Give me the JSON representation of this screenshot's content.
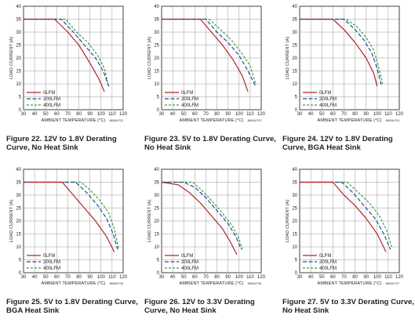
{
  "legend_labels": [
    "0LFM",
    "200LFM",
    "400LFM"
  ],
  "series_colors": {
    "0LFM": "#b2242b",
    "200LFM": "#1f4e96",
    "400LFM": "#3f9c44"
  },
  "chart_data": [
    {
      "type": "line",
      "caption": "Figure 22. 12V to 1.8V Derating Curve, No Heat Sink",
      "xlabel": "AMBIENT TEMPERATURE (°C)",
      "ylabel": "LOAD CURRENT (A)",
      "code": "8600A F22",
      "xlim": [
        30,
        120
      ],
      "ylim": [
        0,
        40
      ],
      "xticks": [
        30,
        40,
        50,
        60,
        70,
        80,
        90,
        100,
        110,
        120
      ],
      "yticks": [
        0,
        5,
        10,
        15,
        20,
        25,
        30,
        35,
        40
      ],
      "grid": true,
      "legend_position": "bottom-left",
      "series": [
        {
          "name": "0LFM",
          "x": [
            30,
            58,
            70,
            80,
            90,
            98,
            103
          ],
          "y": [
            35,
            35,
            30,
            25,
            18,
            12,
            7
          ]
        },
        {
          "name": "200LFM",
          "x": [
            30,
            64,
            75,
            85,
            95,
            102,
            107
          ],
          "y": [
            35,
            35,
            30,
            25,
            20,
            15,
            9
          ]
        },
        {
          "name": "400LFM",
          "x": [
            30,
            68,
            78,
            88,
            97,
            103,
            107
          ],
          "y": [
            35,
            35,
            30,
            26,
            21,
            16,
            9
          ]
        }
      ]
    },
    {
      "type": "line",
      "caption": "Figure 23. 5V to 1.8V Derating Curve, No Heat Sink",
      "xlabel": "AMBIENT TEMPERATURE (°C)",
      "ylabel": "LOAD CURRENT (A)",
      "code": "8600A F23",
      "xlim": [
        30,
        120
      ],
      "ylim": [
        0,
        40
      ],
      "xticks": [
        30,
        40,
        50,
        60,
        70,
        80,
        90,
        100,
        110,
        120
      ],
      "yticks": [
        0,
        5,
        10,
        15,
        20,
        25,
        30,
        35,
        40
      ],
      "grid": true,
      "legend_position": "bottom-left",
      "series": [
        {
          "name": "0LFM",
          "x": [
            30,
            65,
            75,
            85,
            95,
            103,
            108
          ],
          "y": [
            35,
            35,
            30,
            25,
            19,
            13,
            7
          ]
        },
        {
          "name": "200LFM",
          "x": [
            30,
            70,
            80,
            90,
            100,
            108,
            115
          ],
          "y": [
            35,
            35,
            30,
            26,
            21,
            15,
            9
          ]
        },
        {
          "name": "400LFM",
          "x": [
            30,
            73,
            83,
            93,
            102,
            110,
            115
          ],
          "y": [
            35,
            35,
            31,
            27,
            22,
            17,
            10
          ]
        }
      ]
    },
    {
      "type": "line",
      "caption": "Figure 24. 12V to 1.8V Derating Curve, BGA Heat Sink",
      "xlabel": "AMBIENT TEMPERATURE (°C)",
      "ylabel": "LOAD CURRENT (A)",
      "code": "8600A F24",
      "xlim": [
        30,
        120
      ],
      "ylim": [
        0,
        40
      ],
      "xticks": [
        30,
        40,
        50,
        60,
        70,
        80,
        90,
        100,
        110,
        120
      ],
      "yticks": [
        0,
        5,
        10,
        15,
        20,
        25,
        30,
        35,
        40
      ],
      "grid": true,
      "legend_position": "bottom-left",
      "series": [
        {
          "name": "0LFM",
          "x": [
            30,
            60,
            70,
            80,
            90,
            97,
            100
          ],
          "y": [
            35,
            35,
            31,
            26,
            20,
            14,
            9
          ]
        },
        {
          "name": "200LFM",
          "x": [
            30,
            70,
            80,
            88,
            95,
            100,
            104
          ],
          "y": [
            35,
            35,
            31,
            27,
            22,
            16,
            9
          ]
        },
        {
          "name": "400LFM",
          "x": [
            30,
            72,
            82,
            90,
            97,
            101,
            105
          ],
          "y": [
            35,
            35,
            32,
            28,
            23,
            17,
            10
          ]
        }
      ]
    },
    {
      "type": "line",
      "caption": "Figure 25. 5V to 1.8V Derating Curve, BGA Heat Sink",
      "xlabel": "AMBIENT TEMPERATURE (°C)",
      "ylabel": "LOAD CURRENT (A)",
      "code": "8600A F25",
      "xlim": [
        30,
        120
      ],
      "ylim": [
        0,
        40
      ],
      "xticks": [
        30,
        40,
        50,
        60,
        70,
        80,
        90,
        100,
        110,
        120
      ],
      "yticks": [
        0,
        5,
        10,
        15,
        20,
        25,
        30,
        35,
        40
      ],
      "grid": true,
      "legend_position": "bottom-left",
      "series": [
        {
          "name": "0LFM",
          "x": [
            30,
            65,
            75,
            85,
            95,
            105,
            112
          ],
          "y": [
            35,
            35,
            30,
            25,
            20,
            14,
            8
          ]
        },
        {
          "name": "200LFM",
          "x": [
            30,
            77,
            87,
            97,
            105,
            111,
            115
          ],
          "y": [
            35,
            35,
            31,
            26,
            21,
            15,
            9
          ]
        },
        {
          "name": "400LFM",
          "x": [
            30,
            82,
            90,
            99,
            107,
            112,
            116
          ],
          "y": [
            35,
            35,
            32,
            28,
            23,
            17,
            9
          ]
        }
      ]
    },
    {
      "type": "line",
      "caption": "Figure 26. 12V to 3.3V Derating Curve, No Heat Sink",
      "xlabel": "AMBIENT TEMPERATURE (°C)",
      "ylabel": "LOAD CURRENT (A)",
      "code": "8600A F26",
      "xlim": [
        30,
        120
      ],
      "ylim": [
        0,
        40
      ],
      "xticks": [
        30,
        40,
        50,
        60,
        70,
        80,
        90,
        100,
        110,
        120
      ],
      "yticks": [
        0,
        5,
        10,
        15,
        20,
        25,
        30,
        35,
        40
      ],
      "grid": true,
      "legend_position": "bottom-left",
      "series": [
        {
          "name": "0LFM",
          "x": [
            30,
            45,
            55,
            65,
            75,
            85,
            92,
            98
          ],
          "y": [
            35,
            34,
            31,
            27,
            22,
            17,
            12,
            7
          ]
        },
        {
          "name": "200LFM",
          "x": [
            30,
            50,
            60,
            70,
            80,
            90,
            97,
            102
          ],
          "y": [
            35,
            35,
            33,
            29,
            24,
            19,
            14,
            9
          ]
        },
        {
          "name": "400LFM",
          "x": [
            30,
            58,
            66,
            75,
            85,
            94,
            100,
            103
          ],
          "y": [
            35,
            35,
            32,
            28,
            23,
            18,
            13,
            9
          ]
        }
      ]
    },
    {
      "type": "line",
      "caption": "Figure 27. 5V to 3.3V Derating Curve, No Heat Sink",
      "xlabel": "AMBIENT TEMPERATURE (°C)",
      "ylabel": "LOAD CURRENT (A)",
      "code": "8600A F27",
      "xlim": [
        30,
        120
      ],
      "ylim": [
        0,
        40
      ],
      "xticks": [
        30,
        40,
        50,
        60,
        70,
        80,
        90,
        100,
        110,
        120
      ],
      "yticks": [
        0,
        5,
        10,
        15,
        20,
        25,
        30,
        35,
        40
      ],
      "grid": true,
      "legend_position": "bottom-left",
      "series": [
        {
          "name": "0LFM",
          "x": [
            30,
            60,
            70,
            80,
            90,
            100,
            108
          ],
          "y": [
            35,
            35,
            30,
            26,
            21,
            15,
            8
          ]
        },
        {
          "name": "200LFM",
          "x": [
            30,
            68,
            78,
            88,
            98,
            106,
            112
          ],
          "y": [
            35,
            35,
            31,
            26,
            21,
            15,
            9
          ]
        },
        {
          "name": "400LFM",
          "x": [
            30,
            73,
            83,
            93,
            102,
            109,
            113
          ],
          "y": [
            35,
            35,
            31,
            27,
            22,
            16,
            10
          ]
        }
      ]
    }
  ]
}
